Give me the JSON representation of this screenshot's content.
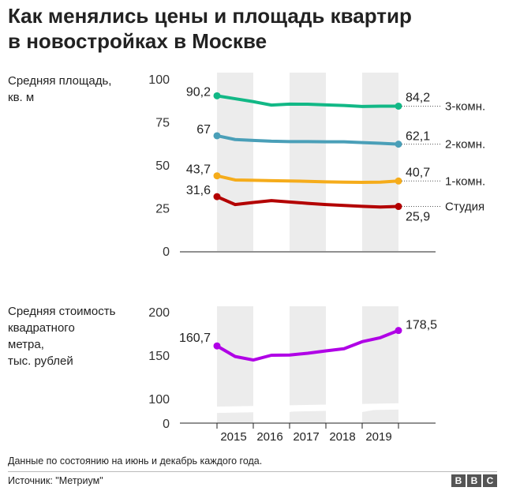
{
  "header": {
    "title_line1": "Как менялись цены и площадь квартир",
    "title_line2": "в новостройках в Москве"
  },
  "footer": {
    "note": "Данные по состоянию на июнь и декабрь каждого года.",
    "source": "Источник: \"Метриум\"",
    "logo": [
      "B",
      "B",
      "C"
    ]
  },
  "colors": {
    "3k": "#12b886",
    "2k": "#4a9fb8",
    "1k": "#f5ac1b",
    "studio": "#b30000",
    "price": "#b000e6",
    "band": "#ececec",
    "axis": "#222222"
  },
  "chart_data": [
    {
      "type": "line",
      "ylabel": [
        "Средняя площадь,",
        "кв. м"
      ],
      "ylim": [
        0,
        100
      ],
      "yticks": [
        0,
        25,
        50,
        75,
        100
      ],
      "x": [
        "2014-12",
        "2015-06",
        "2015-12",
        "2016-06",
        "2016-12",
        "2017-06",
        "2017-12",
        "2018-06",
        "2018-12",
        "2019-06",
        "2019-12"
      ],
      "series": [
        {
          "name": "3-комн.",
          "color_key": "3k",
          "values": [
            90.2,
            88.5,
            86.8,
            84.8,
            85.4,
            85.3,
            84.9,
            84.6,
            84.0,
            84.2,
            84.2
          ],
          "start_label": "90,2",
          "end_label": "84,2"
        },
        {
          "name": "2-комн.",
          "color_key": "2k",
          "values": [
            67.0,
            64.8,
            64.3,
            63.8,
            63.6,
            63.6,
            63.5,
            63.5,
            63.0,
            62.6,
            62.1
          ],
          "start_label": "67",
          "end_label": "62,1"
        },
        {
          "name": "1-комн.",
          "color_key": "1k",
          "values": [
            43.7,
            41.3,
            41.1,
            40.9,
            40.7,
            40.5,
            40.2,
            40.0,
            39.9,
            40.0,
            40.7
          ],
          "start_label": "43,7",
          "end_label": "40,7"
        },
        {
          "name": "Студия",
          "color_key": "studio",
          "values": [
            31.6,
            27.0,
            28.2,
            29.3,
            28.5,
            27.7,
            27.0,
            26.5,
            26.0,
            25.6,
            25.9
          ],
          "start_label": "31,6",
          "end_label": "25,9"
        }
      ]
    },
    {
      "type": "line",
      "ylabel": [
        "Средняя стоимость",
        "квадратного",
        "метра,",
        "тыс. рублей"
      ],
      "ylim": [
        100,
        200
      ],
      "yticks": [
        0,
        100,
        150,
        200
      ],
      "axis_break": true,
      "x": [
        "2014-12",
        "2015-06",
        "2015-12",
        "2016-06",
        "2016-12",
        "2017-06",
        "2017-12",
        "2018-06",
        "2018-12",
        "2019-06",
        "2019-12"
      ],
      "series": [
        {
          "name": "",
          "color_key": "price",
          "values": [
            160.7,
            148.5,
            144.5,
            150.0,
            150.2,
            152.3,
            155.0,
            157.5,
            165.6,
            170.2,
            178.5
          ],
          "start_label": "160,7",
          "end_label": "178,5"
        }
      ],
      "xtick_labels": [
        "2015",
        "2016",
        "2017",
        "2018",
        "2019"
      ]
    }
  ]
}
